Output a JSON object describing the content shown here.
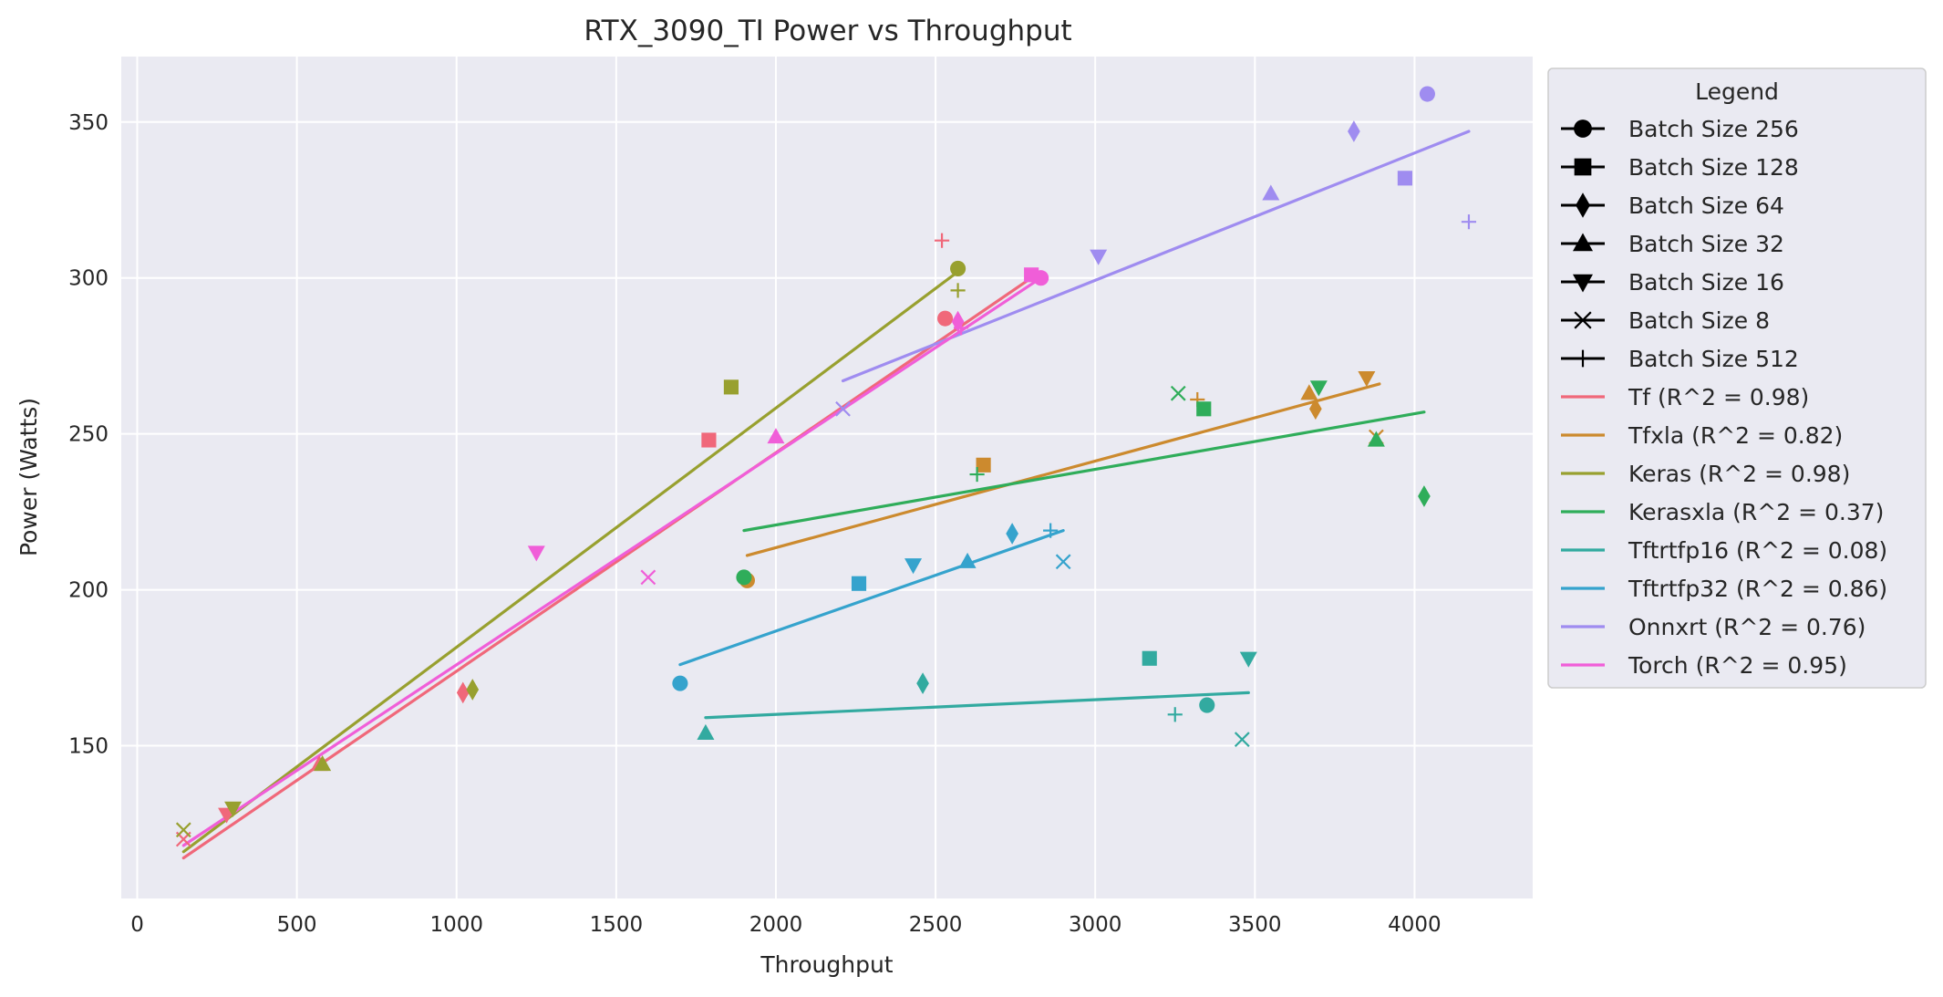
{
  "chart_data": {
    "type": "scatter",
    "title": "RTX_3090_TI Power vs Throughput",
    "xlabel": "Throughput",
    "ylabel": "Power (Watts)",
    "xlim": [
      -50,
      4370
    ],
    "ylim": [
      101,
      371
    ],
    "xticks": [
      0,
      500,
      1000,
      1500,
      2000,
      2500,
      3000,
      3500,
      4000
    ],
    "yticks": [
      150,
      200,
      250,
      300,
      350
    ],
    "grid": true,
    "legend": {
      "title": "Legend",
      "placement": "outside-right",
      "marker_entries": [
        {
          "label": "Batch Size 256",
          "marker": "circle"
        },
        {
          "label": "Batch Size 128",
          "marker": "square"
        },
        {
          "label": "Batch Size 64",
          "marker": "diamond"
        },
        {
          "label": "Batch Size 32",
          "marker": "triangle-up"
        },
        {
          "label": "Batch Size 16",
          "marker": "triangle-down"
        },
        {
          "label": "Batch Size 8",
          "marker": "x"
        },
        {
          "label": "Batch Size 512",
          "marker": "plus"
        }
      ]
    },
    "series": [
      {
        "name": "Tf (R^2 = 0.98)",
        "color": "#f0687a",
        "points": [
          {
            "batch": "256",
            "x": 2530,
            "y": 287
          },
          {
            "batch": "128",
            "x": 1790,
            "y": 248
          },
          {
            "batch": "64",
            "x": 1020,
            "y": 167
          },
          {
            "batch": "32",
            "x": 570,
            "y": 144
          },
          {
            "batch": "16",
            "x": 280,
            "y": 128
          },
          {
            "batch": "8",
            "x": 145,
            "y": 120
          },
          {
            "batch": "512",
            "x": 2520,
            "y": 312
          }
        ],
        "fit": {
          "x": [
            145,
            2800
          ],
          "y": [
            114,
            300
          ]
        }
      },
      {
        "name": "Tfxla (R^2 = 0.82)",
        "color": "#cc8a2e",
        "points": [
          {
            "batch": "256",
            "x": 1910,
            "y": 203
          },
          {
            "batch": "128",
            "x": 2650,
            "y": 240
          },
          {
            "batch": "64",
            "x": 3690,
            "y": 258
          },
          {
            "batch": "32",
            "x": 3670,
            "y": 263
          },
          {
            "batch": "16",
            "x": 3850,
            "y": 268
          },
          {
            "batch": "8",
            "x": 3880,
            "y": 249
          },
          {
            "batch": "512",
            "x": 3320,
            "y": 261
          }
        ],
        "fit": {
          "x": [
            1910,
            3890
          ],
          "y": [
            211,
            266
          ]
        }
      },
      {
        "name": "Keras (R^2 = 0.98)",
        "color": "#98a02f",
        "points": [
          {
            "batch": "256",
            "x": 2570,
            "y": 303
          },
          {
            "batch": "128",
            "x": 1860,
            "y": 265
          },
          {
            "batch": "64",
            "x": 1050,
            "y": 168
          },
          {
            "batch": "32",
            "x": 580,
            "y": 144
          },
          {
            "batch": "16",
            "x": 300,
            "y": 130
          },
          {
            "batch": "8",
            "x": 145,
            "y": 123
          },
          {
            "batch": "512",
            "x": 2570,
            "y": 296
          }
        ],
        "fit": {
          "x": [
            145,
            2570
          ],
          "y": [
            116,
            302
          ]
        }
      },
      {
        "name": "Kerasxla (R^2 = 0.37)",
        "color": "#2fad5a",
        "points": [
          {
            "batch": "256",
            "x": 1900,
            "y": 204
          },
          {
            "batch": "128",
            "x": 3340,
            "y": 258
          },
          {
            "batch": "64",
            "x": 4030,
            "y": 230
          },
          {
            "batch": "32",
            "x": 3880,
            "y": 248
          },
          {
            "batch": "16",
            "x": 3700,
            "y": 265
          },
          {
            "batch": "8",
            "x": 3260,
            "y": 263
          },
          {
            "batch": "512",
            "x": 2630,
            "y": 237
          }
        ],
        "fit": {
          "x": [
            1900,
            4030
          ],
          "y": [
            219,
            257
          ]
        }
      },
      {
        "name": "Tftrtfp16 (R^2 = 0.08)",
        "color": "#32aaa0",
        "points": [
          {
            "batch": "256",
            "x": 3350,
            "y": 163
          },
          {
            "batch": "128",
            "x": 3170,
            "y": 178
          },
          {
            "batch": "64",
            "x": 2460,
            "y": 170
          },
          {
            "batch": "32",
            "x": 1780,
            "y": 154
          },
          {
            "batch": "16",
            "x": 3480,
            "y": 178
          },
          {
            "batch": "8",
            "x": 3460,
            "y": 152
          },
          {
            "batch": "512",
            "x": 3250,
            "y": 160
          }
        ],
        "fit": {
          "x": [
            1780,
            3480
          ],
          "y": [
            159,
            167
          ]
        }
      },
      {
        "name": "Tftrtfp32 (R^2 = 0.86)",
        "color": "#35a3cd",
        "points": [
          {
            "batch": "256",
            "x": 1700,
            "y": 170
          },
          {
            "batch": "128",
            "x": 2260,
            "y": 202
          },
          {
            "batch": "64",
            "x": 2740,
            "y": 218
          },
          {
            "batch": "32",
            "x": 2600,
            "y": 209
          },
          {
            "batch": "16",
            "x": 2430,
            "y": 208
          },
          {
            "batch": "8",
            "x": 2900,
            "y": 209
          },
          {
            "batch": "512",
            "x": 2860,
            "y": 219
          }
        ],
        "fit": {
          "x": [
            1700,
            2900
          ],
          "y": [
            176,
            219
          ]
        }
      },
      {
        "name": "Onnxrt (R^2 = 0.76)",
        "color": "#9f8cf0",
        "points": [
          {
            "batch": "256",
            "x": 4040,
            "y": 359
          },
          {
            "batch": "128",
            "x": 3970,
            "y": 332
          },
          {
            "batch": "64",
            "x": 3810,
            "y": 347
          },
          {
            "batch": "32",
            "x": 3550,
            "y": 327
          },
          {
            "batch": "16",
            "x": 3010,
            "y": 307
          },
          {
            "batch": "8",
            "x": 2210,
            "y": 258
          },
          {
            "batch": "512",
            "x": 4170,
            "y": 318
          }
        ],
        "fit": {
          "x": [
            2210,
            4170
          ],
          "y": [
            267,
            347
          ]
        }
      },
      {
        "name": "Torch (R^2 = 0.95)",
        "color": "#f05ed8",
        "points": [
          {
            "batch": "256",
            "x": 2830,
            "y": 300
          },
          {
            "batch": "128",
            "x": 2800,
            "y": 301
          },
          {
            "batch": "64",
            "x": 2570,
            "y": 286
          },
          {
            "batch": "32",
            "x": 2000,
            "y": 249
          },
          {
            "batch": "16",
            "x": 1250,
            "y": 212
          },
          {
            "batch": "8",
            "x": 1600,
            "y": 204
          },
          {
            "batch": "512",
            "x": 2580,
            "y": 284
          }
        ],
        "fit": {
          "x": [
            145,
            2830
          ],
          "y": [
            118,
            300
          ]
        }
      }
    ]
  }
}
